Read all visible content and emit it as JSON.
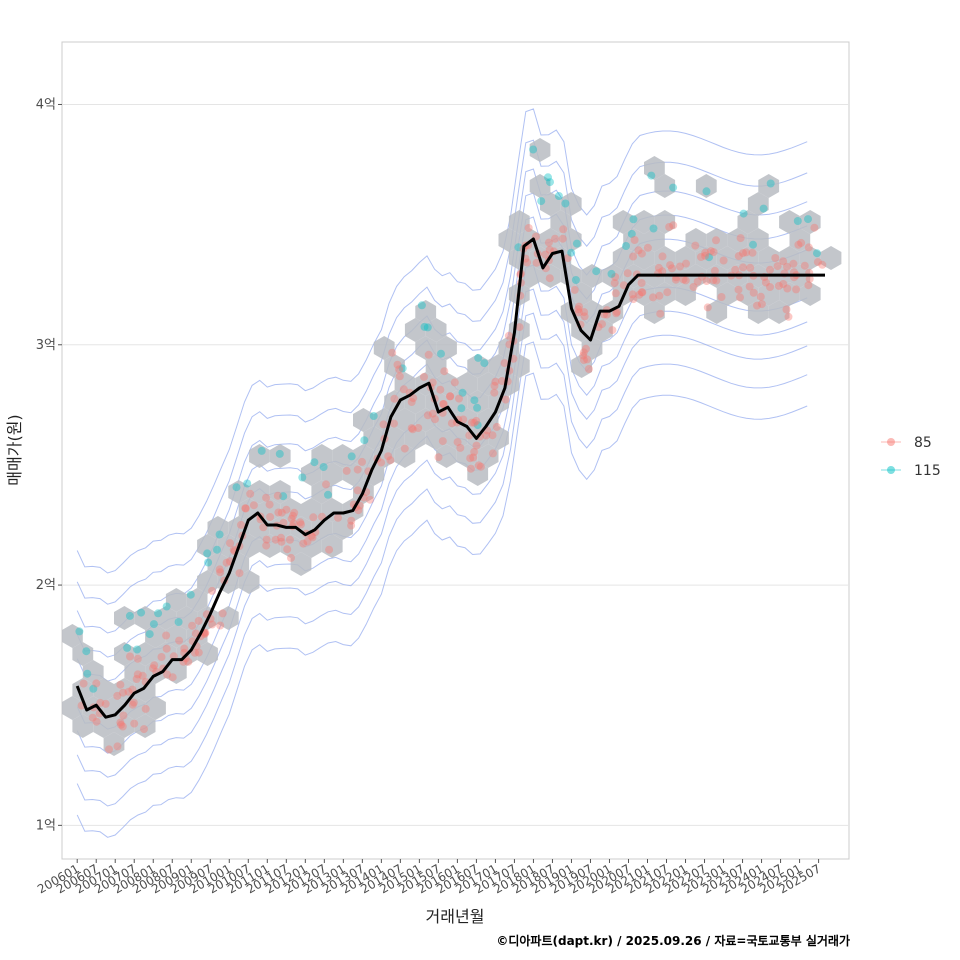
{
  "chart_data": {
    "type": "scatter",
    "title": "",
    "xlabel": "거래년월",
    "ylabel": "매매가(원)",
    "caption": "©디아파트(dapt.kr) / 2025.09.26 / 자료=국토교통부 실거래가",
    "x_ticks": [
      "200601",
      "200607",
      "200701",
      "200707",
      "200801",
      "200807",
      "200901",
      "200907",
      "201001",
      "201007",
      "201101",
      "201107",
      "201201",
      "201207",
      "201301",
      "201307",
      "201401",
      "201407",
      "201501",
      "201507",
      "201601",
      "201607",
      "201701",
      "201707",
      "201801",
      "201807",
      "201901",
      "201907",
      "202001",
      "202007",
      "202101",
      "202107",
      "202201",
      "202207",
      "202301",
      "202307",
      "202401",
      "202407",
      "202501",
      "202507"
    ],
    "y_ticks": [
      {
        "value": 1,
        "label": "1억"
      },
      {
        "value": 2,
        "label": "2억"
      },
      {
        "value": 3,
        "label": "3억"
      },
      {
        "value": 4,
        "label": "4억"
      }
    ],
    "xlim": [
      2005.6,
      2026.3
    ],
    "ylim": [
      0.86,
      4.26
    ],
    "legend": [
      {
        "label": "85",
        "color": "#F8766D"
      },
      {
        "label": "115",
        "color": "#00BFC4"
      }
    ],
    "colors": {
      "hex": "#b8bcc2",
      "contour": "#8fa6ee",
      "median": "#000000",
      "grid": "#e5e5e5"
    },
    "median_line": {
      "name": "median",
      "x": [
        2006.0,
        2006.25,
        2006.5,
        2006.75,
        2007.0,
        2007.25,
        2007.5,
        2007.75,
        2008.0,
        2008.25,
        2008.5,
        2008.75,
        2009.0,
        2009.25,
        2009.5,
        2009.75,
        2010.0,
        2010.25,
        2010.5,
        2010.75,
        2011.0,
        2011.25,
        2011.5,
        2011.75,
        2012.0,
        2012.25,
        2012.5,
        2012.75,
        2013.0,
        2013.25,
        2013.5,
        2013.75,
        2014.0,
        2014.25,
        2014.5,
        2014.75,
        2015.0,
        2015.25,
        2015.5,
        2015.75,
        2016.0,
        2016.25,
        2016.5,
        2016.75,
        2017.0,
        2017.25,
        2017.5,
        2017.75,
        2018.0,
        2018.25,
        2018.5,
        2018.75,
        2019.0,
        2019.25,
        2019.5,
        2019.75,
        2020.0,
        2020.25,
        2020.5,
        2020.75,
        2021.0,
        2021.25,
        2021.5,
        2021.75,
        2022.0,
        2022.25,
        2022.5,
        2022.75,
        2023.0,
        2023.25,
        2023.5,
        2023.75,
        2024.0,
        2024.25,
        2024.5,
        2024.75,
        2025.0,
        2025.25,
        2025.5,
        2025.67
      ],
      "y": [
        1.58,
        1.48,
        1.5,
        1.45,
        1.46,
        1.5,
        1.55,
        1.57,
        1.62,
        1.64,
        1.69,
        1.69,
        1.73,
        1.8,
        1.88,
        1.97,
        2.05,
        2.16,
        2.27,
        2.3,
        2.25,
        2.25,
        2.24,
        2.24,
        2.21,
        2.23,
        2.27,
        2.3,
        2.3,
        2.31,
        2.38,
        2.48,
        2.56,
        2.7,
        2.77,
        2.79,
        2.82,
        2.84,
        2.72,
        2.74,
        2.68,
        2.66,
        2.61,
        2.66,
        2.72,
        2.82,
        3.05,
        3.41,
        3.44,
        3.32,
        3.38,
        3.39,
        3.15,
        3.06,
        3.02,
        3.14,
        3.14,
        3.16,
        3.25,
        3.29,
        3.29,
        3.29,
        3.29,
        3.29,
        3.29,
        3.29,
        3.29,
        3.29,
        3.29,
        3.29,
        3.29,
        3.29,
        3.29,
        3.29,
        3.29,
        3.29,
        3.29,
        3.29,
        3.29,
        3.29
      ]
    }
  }
}
